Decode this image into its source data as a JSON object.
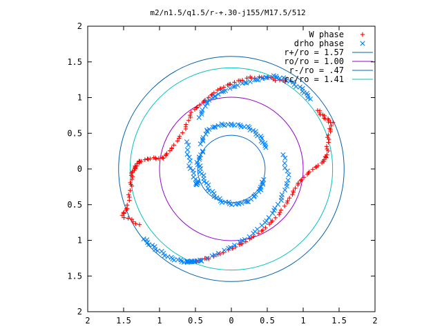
{
  "chart_data": {
    "type": "scatter",
    "title": "m2/n1.5/q1.5/r-+.30-j155/M17.5/512",
    "xlim": [
      -2,
      2
    ],
    "ylim": [
      -2,
      2
    ],
    "x_tick_labels": [
      "2",
      "1.5",
      "1",
      "0.5",
      "0",
      "0.5",
      "1",
      "1.5",
      "2"
    ],
    "y_tick_labels": [
      "2",
      "1.5",
      "1",
      "0.5",
      "0",
      "0.5",
      "1",
      "1.5",
      "2"
    ],
    "x_ticks": [
      -2,
      -1.5,
      -1,
      -0.5,
      0,
      0.5,
      1,
      1.5,
      2
    ],
    "y_ticks": [
      2,
      1.5,
      1,
      0.5,
      0,
      -0.5,
      -1,
      -1.5,
      -2
    ],
    "legend_position": "top-right",
    "grid": false,
    "series": [
      {
        "name": "W phase",
        "kind": "points",
        "marker": "+",
        "color": "#ff0000",
        "arms": [
          {
            "points": [
              [
                1.2,
                0.82
              ],
              [
                1.3,
                0.72
              ],
              [
                1.4,
                0.64
              ],
              [
                1.35,
                0.45
              ],
              [
                1.33,
                0.2
              ],
              [
                1.28,
                0.1
              ],
              [
                1.1,
                -0.03
              ],
              [
                0.93,
                -0.2
              ]
            ]
          },
          {
            "points": [
              [
                -1.28,
                0.1
              ],
              [
                -1.38,
                -0.05
              ],
              [
                -1.4,
                -0.25
              ],
              [
                -1.45,
                -0.55
              ],
              [
                -1.52,
                -0.65
              ],
              [
                -1.28,
                -0.78
              ]
            ]
          },
          {
            "points": [
              [
                -0.95,
                0.15
              ],
              [
                -1.12,
                0.15
              ],
              [
                -1.3,
                0.1
              ],
              [
                -1.38,
                -0.05
              ]
            ]
          },
          {
            "points": [
              [
                -0.95,
                0.15
              ],
              [
                -0.82,
                0.3
              ],
              [
                -0.65,
                0.55
              ],
              [
                -0.55,
                0.8
              ],
              [
                -0.38,
                0.95
              ],
              [
                -0.2,
                1.1
              ],
              [
                0.0,
                1.2
              ],
              [
                0.25,
                1.28
              ],
              [
                0.5,
                1.28
              ],
              [
                0.75,
                1.22
              ]
            ]
          },
          {
            "points": [
              [
                0.93,
                -0.2
              ],
              [
                0.82,
                -0.4
              ],
              [
                0.65,
                -0.65
              ],
              [
                0.45,
                -0.85
              ],
              [
                0.2,
                -1.02
              ],
              [
                0.0,
                -1.12
              ],
              [
                -0.3,
                -1.25
              ],
              [
                -0.55,
                -1.3
              ]
            ]
          }
        ]
      },
      {
        "name": "drho phase",
        "kind": "points",
        "marker": "x",
        "color": "#0080ff",
        "arms": [
          {
            "points": [
              [
                -0.45,
                0.72
              ],
              [
                -0.33,
                0.95
              ],
              [
                -0.15,
                1.07
              ],
              [
                0.1,
                1.18
              ],
              [
                0.35,
                1.25
              ],
              [
                0.58,
                1.3
              ],
              [
                0.78,
                1.25
              ],
              [
                0.98,
                1.12
              ],
              [
                1.1,
                0.98
              ]
            ]
          },
          {
            "points": [
              [
                -0.62,
                0.38
              ],
              [
                -0.58,
                0.05
              ],
              [
                -0.48,
                -0.18
              ],
              [
                -0.48,
                -0.22
              ]
            ]
          },
          {
            "points": [
              [
                0.72,
                0.2
              ],
              [
                0.8,
                -0.15
              ],
              [
                0.68,
                -0.45
              ],
              [
                0.5,
                -0.72
              ],
              [
                0.25,
                -0.95
              ],
              [
                -0.05,
                -1.12
              ],
              [
                -0.4,
                -1.28
              ],
              [
                -0.55,
                -1.3
              ]
            ]
          },
          {
            "points": [
              [
                -1.22,
                -0.98
              ],
              [
                -1.05,
                -1.12
              ],
              [
                -0.85,
                -1.25
              ],
              [
                -0.65,
                -1.3
              ],
              [
                -0.55,
                -1.3
              ]
            ]
          },
          {
            "points": [
              [
                -0.43,
                0.35
              ],
              [
                -0.33,
                0.55
              ],
              [
                -0.15,
                0.62
              ],
              [
                0.05,
                0.62
              ],
              [
                0.25,
                0.58
              ],
              [
                0.4,
                0.45
              ],
              [
                0.48,
                0.3
              ]
            ]
          },
          {
            "points": [
              [
                -0.4,
                0.25
              ],
              [
                -0.47,
                0.1
              ],
              [
                -0.4,
                -0.1
              ],
              [
                -0.3,
                -0.3
              ],
              [
                -0.15,
                -0.45
              ],
              [
                0.05,
                -0.5
              ],
              [
                0.25,
                -0.45
              ],
              [
                0.4,
                -0.3
              ],
              [
                0.45,
                -0.15
              ]
            ]
          }
        ]
      },
      {
        "name": "r+/ro = 1.57",
        "kind": "circle",
        "radius": 1.57,
        "color": "#0060ad"
      },
      {
        "name": "ro/ro = 1.00",
        "kind": "circle",
        "radius": 1.0,
        "color": "#9400d3"
      },
      {
        "name": "r-/ro = .47",
        "kind": "circle",
        "radius": 0.47,
        "color": "#0066cc"
      },
      {
        "name": "rc/ro = 1.41",
        "kind": "circle",
        "radius": 1.41,
        "color": "#00c0c0"
      }
    ]
  }
}
